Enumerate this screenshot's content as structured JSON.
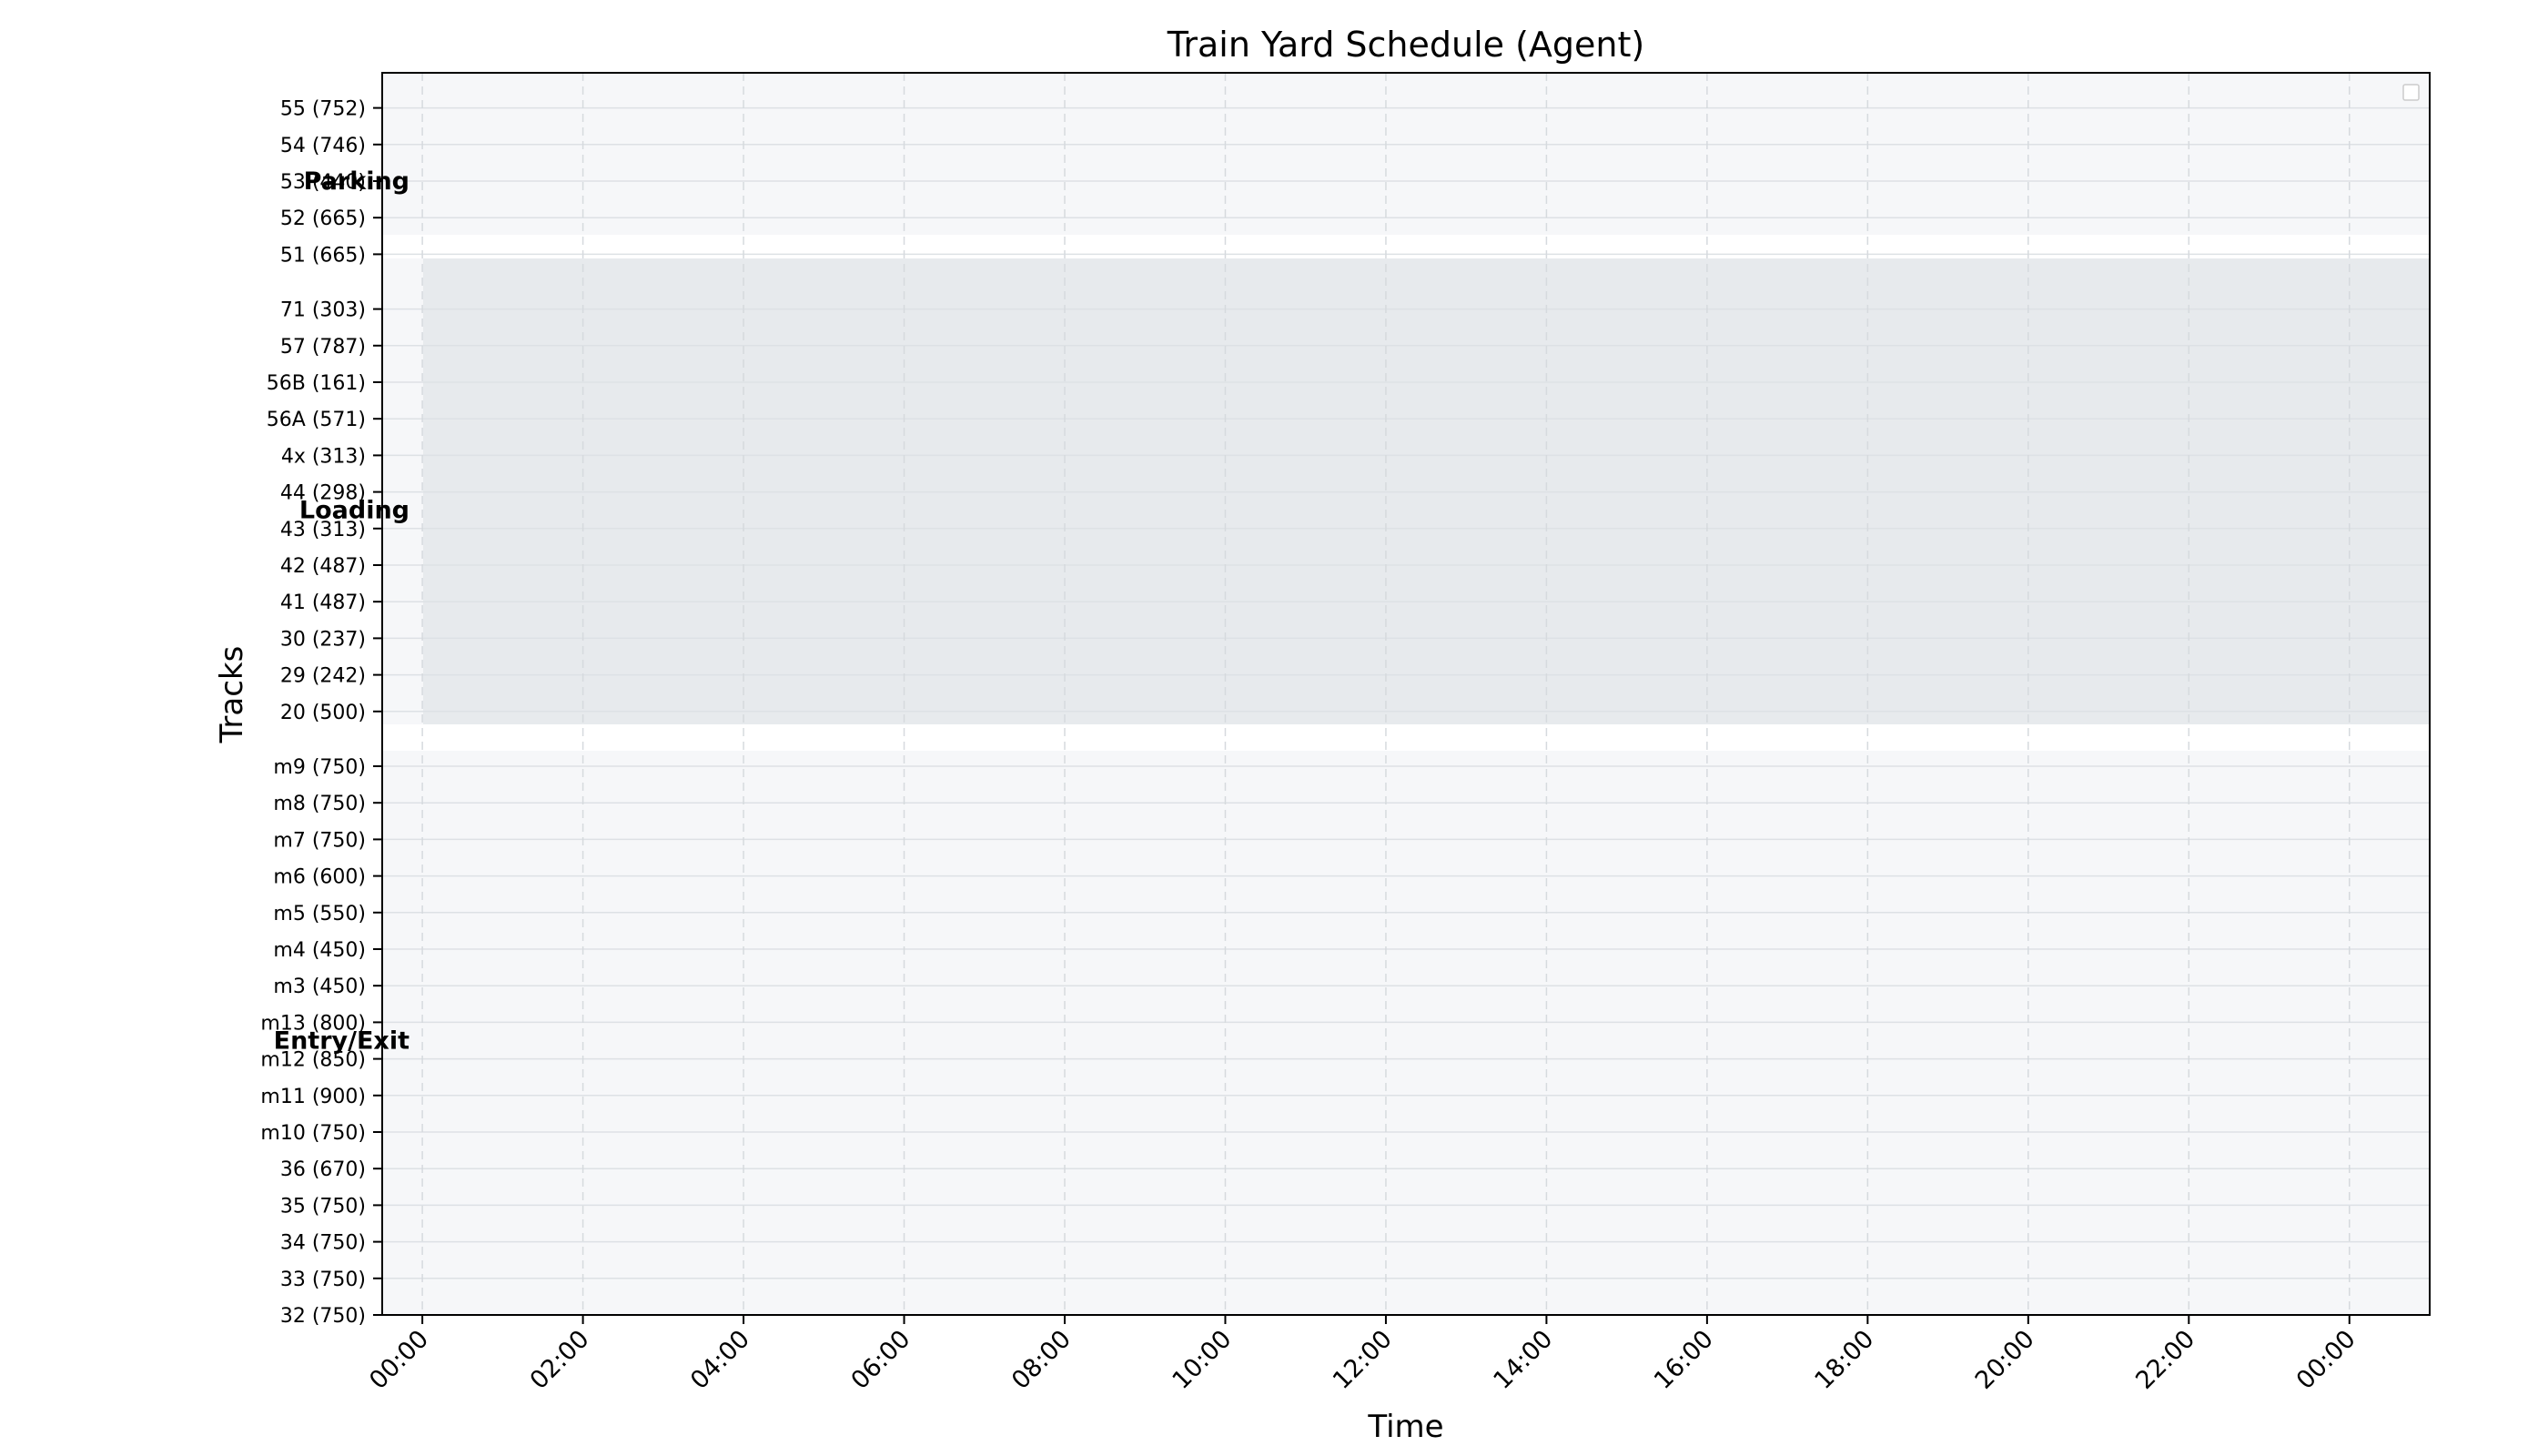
{
  "chart_data": {
    "type": "gantt",
    "title": "Train Yard Schedule (Agent)",
    "xlabel": "Time",
    "ylabel": "Tracks",
    "x_ticks": [
      "00:00",
      "02:00",
      "04:00",
      "06:00",
      "08:00",
      "10:00",
      "12:00",
      "14:00",
      "16:00",
      "18:00",
      "20:00",
      "22:00",
      "00:00"
    ],
    "x_range_hours": [
      -0.5,
      25.0
    ],
    "grid": true,
    "legend": "top-right (empty)",
    "colors": {
      "background": "#f6f7f9",
      "loading_band": "#e7eaed",
      "band_gap": "#ffffff",
      "grid_h": "#dde1e5",
      "grid_v": "#d6dade"
    },
    "tracks_top_to_bottom": [
      "55 (752)",
      "54 (746)",
      "53 (440)",
      "52 (665)",
      "51 (665)",
      "71 (303)",
      "57 (787)",
      "56B (161)",
      "56A (571)",
      "4x (313)",
      "44 (298)",
      "43 (313)",
      "42 (487)",
      "41 (487)",
      "30 (237)",
      "29 (242)",
      "20 (500)",
      "m9 (750)",
      "m8 (750)",
      "m7 (750)",
      "m6 (600)",
      "m5 (550)",
      "m4 (450)",
      "m3 (450)",
      "m13 (800)",
      "m12 (850)",
      "m11 (900)",
      "m10 (750)",
      "36 (670)",
      "35 (750)",
      "34 (750)",
      "33 (750)",
      "32 (750)"
    ],
    "sections": [
      {
        "label": "Parking",
        "tracks": [
          "55 (752)",
          "54 (746)",
          "53 (440)",
          "52 (665)",
          "51 (665)"
        ]
      },
      {
        "label": "Loading",
        "tracks": [
          "71 (303)",
          "57 (787)",
          "56B (161)",
          "56A (571)",
          "4x (313)",
          "44 (298)",
          "43 (313)",
          "42 (487)",
          "41 (487)",
          "30 (237)",
          "29 (242)",
          "20 (500)"
        ]
      },
      {
        "label": "Entry/Exit",
        "tracks": [
          "m9 (750)",
          "m8 (750)",
          "m7 (750)",
          "m6 (600)",
          "m5 (550)",
          "m4 (450)",
          "m3 (450)",
          "m13 (800)",
          "m12 (850)",
          "m11 (900)",
          "m10 (750)",
          "36 (670)",
          "35 (750)",
          "34 (750)",
          "33 (750)",
          "32 (750)"
        ]
      }
    ],
    "scheduled_trains": []
  }
}
